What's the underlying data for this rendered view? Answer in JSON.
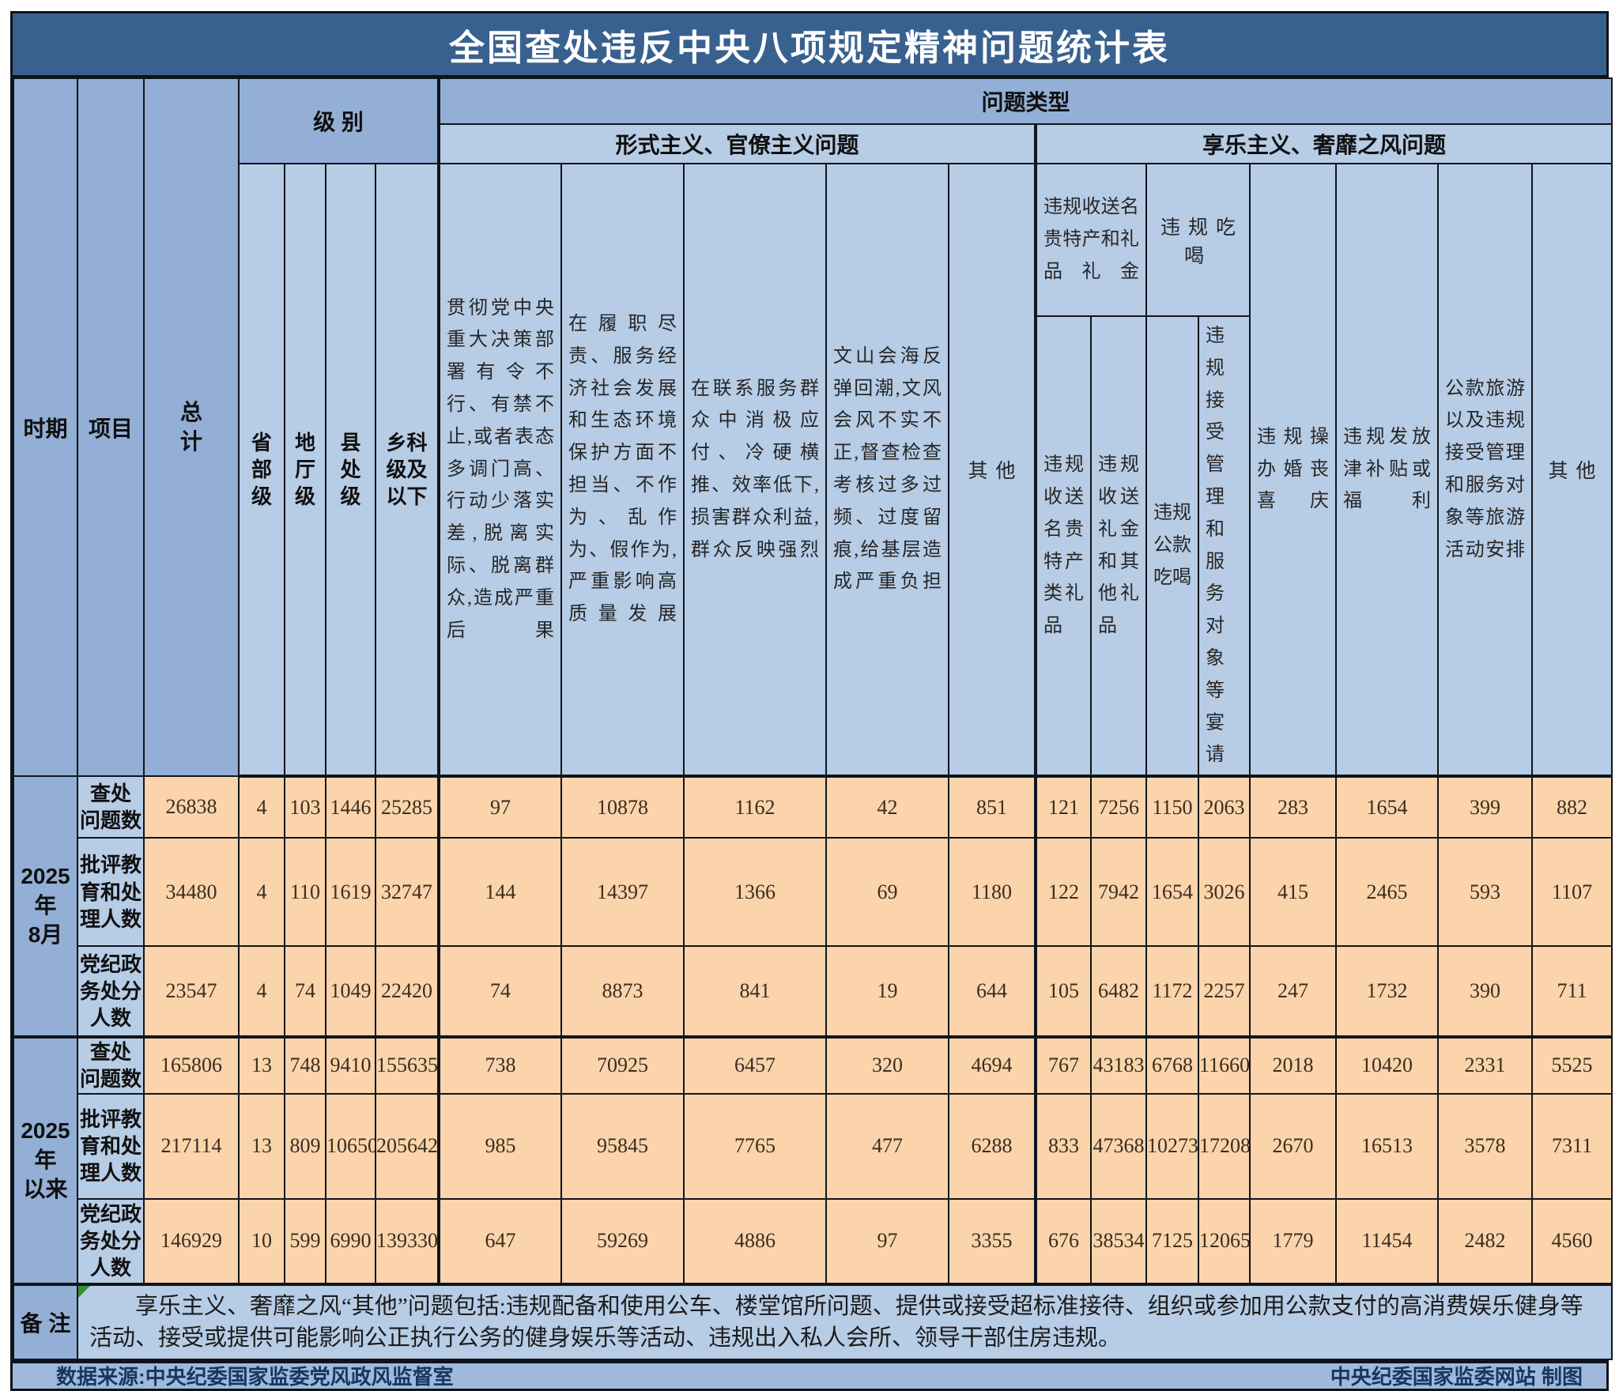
{
  "title": "全国查处违反中央八项规定精神问题统计表",
  "header": {
    "period": "时期",
    "item": "项目",
    "total": "总\n计",
    "level_group": "级 别",
    "levels": [
      "省\n部\n级",
      "地\n厅\n级",
      "县\n处\n级",
      "乡科\n级及\n以下"
    ],
    "problem_type": "问题类型",
    "formalism_group": "形式主义、官僚主义问题",
    "hedonism_group": "享乐主义、奢靡之风问题"
  },
  "columns": {
    "formalism": [
      "贯彻党中央重大决策部署有令不行、有禁不止,或者表态多调门高、行动少落实差,脱离实际、脱离群众,造成严重后果",
      "在履职尽责、服务经济社会发展和生态环境保护方面不担当、不作为、乱作为、假作为,严重影响高质量发展",
      "在联系服务群众中消极应付、冷硬横推、效率低下,损害群众利益,群众反映强烈",
      "文山会海反弹回潮,文风会风不实不正,督查检查考核过多过频、过度留痕,给基层造成严重负担",
      "其他"
    ],
    "gift_group": "违规收送名贵特产和礼品礼金",
    "eatdrink_group": "违规吃喝",
    "hedonism_sub": [
      "违规收送名贵特产类礼品",
      "违规收送礼金和其他礼品",
      "违规公款吃喝",
      "违规接受管理和服务对象等宴请"
    ],
    "hedonism_single": [
      "违规操办婚丧喜庆",
      "违规发放津补贴或福利",
      "公款旅游以及违规接受管理和服务对象等旅游活动安排",
      "其他"
    ]
  },
  "periods": [
    {
      "label": "2025年\n8月",
      "rows": [
        {
          "item": "查处\n问题数",
          "values": [
            26838,
            4,
            103,
            1446,
            25285,
            97,
            10878,
            1162,
            42,
            851,
            121,
            7256,
            1150,
            2063,
            283,
            1654,
            399,
            882
          ]
        },
        {
          "item": "批评教\n育和处\n理人数",
          "values": [
            34480,
            4,
            110,
            1619,
            32747,
            144,
            14397,
            1366,
            69,
            1180,
            122,
            7942,
            1654,
            3026,
            415,
            2465,
            593,
            1107
          ]
        },
        {
          "item": "党纪政\n务处分\n人数",
          "values": [
            23547,
            4,
            74,
            1049,
            22420,
            74,
            8873,
            841,
            19,
            644,
            105,
            6482,
            1172,
            2257,
            247,
            1732,
            390,
            711
          ]
        }
      ]
    },
    {
      "label": "2025年\n以来",
      "rows": [
        {
          "item": "查处\n问题数",
          "values": [
            165806,
            13,
            748,
            9410,
            155635,
            738,
            70925,
            6457,
            320,
            4694,
            767,
            43183,
            6768,
            11660,
            2018,
            10420,
            2331,
            5525
          ]
        },
        {
          "item": "批评教\n育和处\n理人数",
          "values": [
            217114,
            13,
            809,
            10650,
            205642,
            985,
            95845,
            7765,
            477,
            6288,
            833,
            47368,
            10273,
            17208,
            2670,
            16513,
            3578,
            7311
          ]
        },
        {
          "item": "党纪政\n务处分\n人数",
          "values": [
            146929,
            10,
            599,
            6990,
            139330,
            647,
            59269,
            4886,
            97,
            3355,
            676,
            38534,
            7125,
            12065,
            1779,
            11454,
            2482,
            4560
          ]
        }
      ]
    }
  ],
  "remark": {
    "label": "备 注",
    "text": "享乐主义、奢靡之风“其他”问题包括:违规配备和使用公车、楼堂馆所问题、提供或接受超标准接待、组织或参加用公款支付的高消费娱乐健身等活动、接受或提供可能影响公正执行公务的健身娱乐等活动、违规出入私人会所、领导干部住房违规。"
  },
  "footer": {
    "source": "数据来源:中央纪委国家监委党风政风监督室",
    "credit": "中央纪委国家监委网站 制图"
  },
  "colors": {
    "title_bar": "#39618F",
    "header_blue": "#93AFD6",
    "light_blue": "#B7CCE5",
    "data_peach": "#FBD4AC",
    "footer_bar": "#9FB9DC",
    "footer_text": "#17375E",
    "border": "#10151c",
    "marker_green": "#2f9331"
  }
}
